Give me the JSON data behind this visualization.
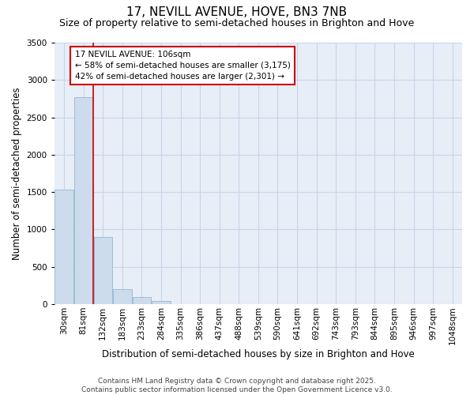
{
  "title_line1": "17, NEVILL AVENUE, HOVE, BN3 7NB",
  "title_line2": "Size of property relative to semi-detached houses in Brighton and Hove",
  "xlabel": "Distribution of semi-detached houses by size in Brighton and Hove",
  "ylabel": "Number of semi-detached properties",
  "categories": [
    "30sqm",
    "81sqm",
    "132sqm",
    "183sqm",
    "233sqm",
    "284sqm",
    "335sqm",
    "386sqm",
    "437sqm",
    "488sqm",
    "539sqm",
    "590sqm",
    "641sqm",
    "692sqm",
    "743sqm",
    "793sqm",
    "844sqm",
    "895sqm",
    "946sqm",
    "997sqm",
    "1048sqm"
  ],
  "values": [
    1530,
    2770,
    900,
    200,
    100,
    48,
    5,
    0,
    0,
    0,
    0,
    0,
    0,
    0,
    0,
    0,
    0,
    0,
    0,
    0,
    0
  ],
  "bar_color": "#ccdcec",
  "bar_edge_color": "#9bbdd6",
  "grid_color": "#c8d4e8",
  "bg_color": "#e8eef8",
  "vline_color": "#cc0000",
  "vline_pos": 1.5,
  "annotation_text": "17 NEVILL AVENUE: 106sqm\n← 58% of semi-detached houses are smaller (3,175)\n42% of semi-detached houses are larger (2,301) →",
  "annotation_box_color": "#cc0000",
  "ylim": [
    0,
    3500
  ],
  "yticks": [
    0,
    500,
    1000,
    1500,
    2000,
    2500,
    3000,
    3500
  ],
  "footnote": "Contains HM Land Registry data © Crown copyright and database right 2025.\nContains public sector information licensed under the Open Government Licence v3.0.",
  "title_fontsize": 11,
  "subtitle_fontsize": 9,
  "axis_label_fontsize": 8.5,
  "tick_fontsize": 7.5,
  "annotation_fontsize": 7.5,
  "footnote_fontsize": 6.5
}
